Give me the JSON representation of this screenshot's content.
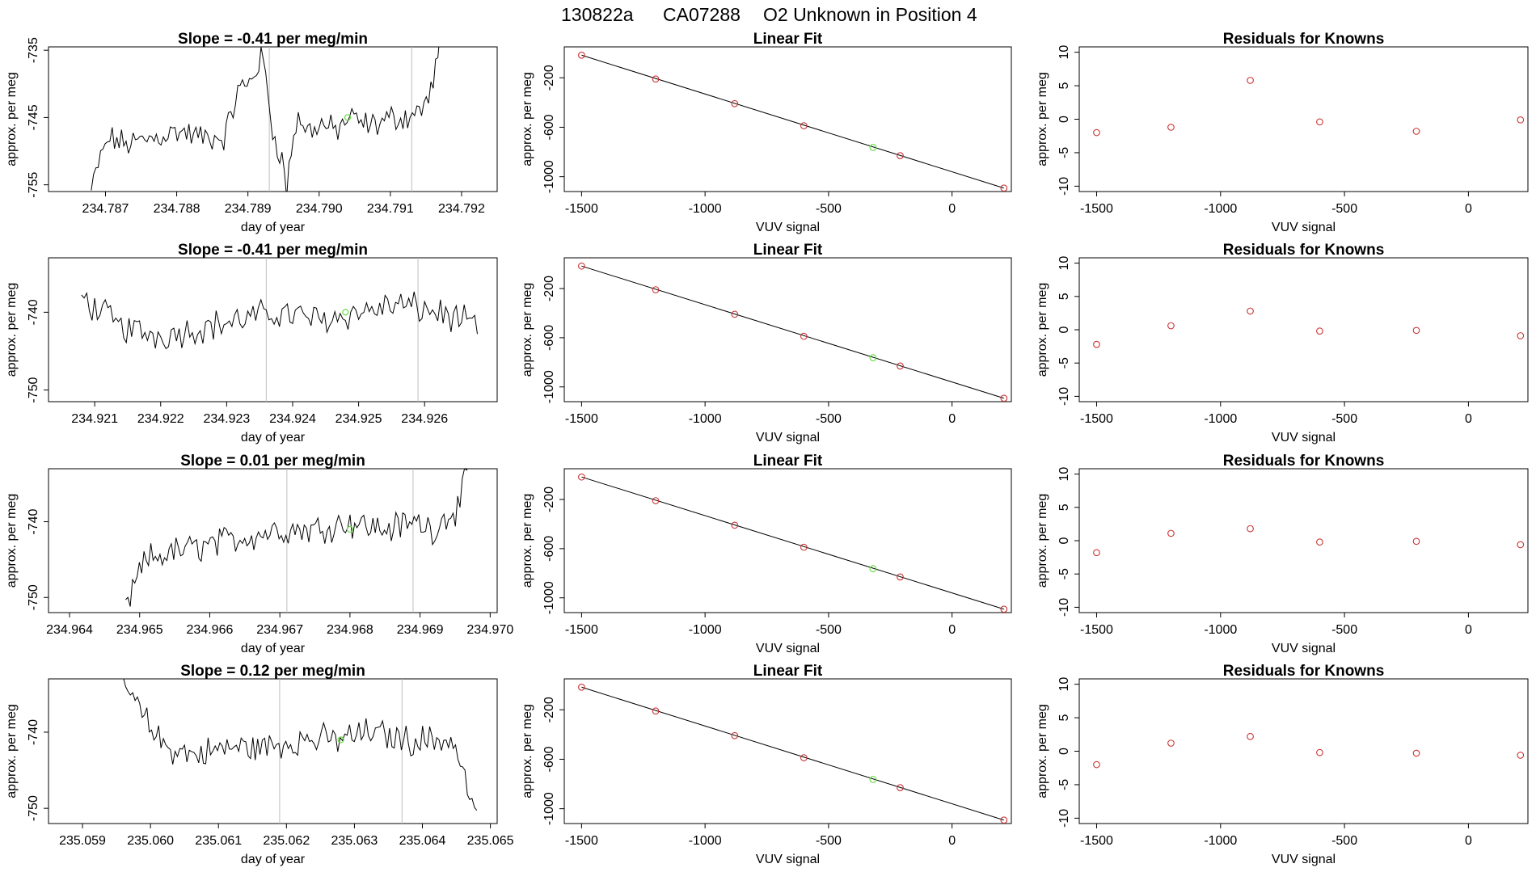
{
  "figure": {
    "title_id": "130822a",
    "title_cyl": "CA07288",
    "title_desc": "O2 Unknown in Position  4"
  },
  "colors": {
    "trace": "#000000",
    "vline": "#bdbdbd",
    "known_point": "#cd3333",
    "unknown_point": "#66dd44",
    "fit_line": "#000000"
  },
  "chart_data": [
    {
      "type": "line",
      "row": 1,
      "col": 1,
      "title": "Slope =  -0.41  per meg/min",
      "xlabel": "day of year",
      "ylabel": "approx. per meg",
      "xlim": [
        234.7862,
        234.7925
      ],
      "ylim": [
        -756,
        -734.5
      ],
      "xticks": [
        "234.787",
        "234.788",
        "234.789",
        "234.790",
        "234.791",
        "234.792"
      ],
      "yticks": [
        "-735",
        "-745",
        "-755"
      ],
      "vlines": [
        234.7893,
        234.7913
      ],
      "x_start": 234.7868,
      "x_end": 234.7917,
      "levels": [
        [
          0.0,
          -756
        ],
        [
          0.02,
          -752
        ],
        [
          0.05,
          -748
        ],
        [
          0.1,
          -749
        ],
        [
          0.18,
          -748
        ],
        [
          0.25,
          -747
        ],
        [
          0.32,
          -748
        ],
        [
          0.38,
          -748
        ],
        [
          0.4,
          -745
        ],
        [
          0.42,
          -741
        ],
        [
          0.45,
          -740
        ],
        [
          0.47,
          -738
        ],
        [
          0.49,
          -736
        ],
        [
          0.5,
          -739
        ],
        [
          0.52,
          -747
        ],
        [
          0.54,
          -750
        ],
        [
          0.55,
          -752
        ],
        [
          0.56,
          -756
        ],
        [
          0.57,
          -751
        ],
        [
          0.59,
          -745
        ],
        [
          0.62,
          -747
        ],
        [
          0.66,
          -746
        ],
        [
          0.7,
          -747
        ],
        [
          0.74,
          -745
        ],
        [
          0.78,
          -746
        ],
        [
          0.82,
          -746
        ],
        [
          0.86,
          -745
        ],
        [
          0.9,
          -745
        ],
        [
          0.94,
          -744
        ],
        [
          0.97,
          -742
        ],
        [
          1.0,
          -734
        ]
      ],
      "unknown_point": {
        "x": 234.7904,
        "y": -745
      }
    },
    {
      "type": "scatter",
      "row": 1,
      "col": 2,
      "title": "Linear Fit",
      "xlabel": "VUV signal",
      "ylabel": "approx. per meg",
      "xlim": [
        -1570,
        240
      ],
      "ylim": [
        -1120,
        50
      ],
      "xticks": [
        -1500,
        -1000,
        -500,
        0
      ],
      "yticks": [
        -200,
        -600,
        -1000
      ],
      "known_points": [
        [
          -1500,
          -17
        ],
        [
          -1200,
          -210
        ],
        [
          -880,
          -409
        ],
        [
          -600,
          -588
        ],
        [
          -210,
          -830
        ],
        [
          210,
          -1092
        ]
      ],
      "unknown_point": [
        -320,
        -763
      ],
      "fit_line": [
        [
          -1500,
          -17
        ],
        [
          210,
          -1092
        ]
      ]
    },
    {
      "type": "scatter",
      "row": 1,
      "col": 3,
      "title": "Residuals for Knowns",
      "xlabel": "VUV signal",
      "ylabel": "approx. per meg",
      "xlim": [
        -1570,
        240
      ],
      "ylim": [
        -10.8,
        10.8
      ],
      "xticks": [
        -1500,
        -1000,
        -500,
        0
      ],
      "yticks": [
        10,
        5,
        0,
        -5,
        -10
      ],
      "known_points": [
        [
          -1500,
          -2.0
        ],
        [
          -1200,
          -1.2
        ],
        [
          -880,
          5.8
        ],
        [
          -600,
          -0.4
        ],
        [
          -210,
          -1.8
        ],
        [
          210,
          -0.1
        ]
      ]
    },
    {
      "type": "line",
      "row": 2,
      "col": 1,
      "title": "Slope =  -0.41  per meg/min",
      "xlabel": "day of year",
      "ylabel": "approx. per meg",
      "xlim": [
        234.9203,
        234.9271
      ],
      "ylim": [
        -751.5,
        -733
      ],
      "xticks": [
        "234.921",
        "234.922",
        "234.923",
        "234.924",
        "234.925",
        "234.926"
      ],
      "yticks": [
        "-740",
        "-750"
      ],
      "vlines": [
        234.9236,
        234.9259
      ],
      "x_start": 234.9208,
      "x_end": 234.9268,
      "levels": [
        [
          0.0,
          -738
        ],
        [
          0.1,
          -742
        ],
        [
          0.2,
          -743
        ],
        [
          0.3,
          -742
        ],
        [
          0.4,
          -741
        ],
        [
          0.5,
          -740
        ],
        [
          0.6,
          -741
        ],
        [
          0.7,
          -740
        ],
        [
          0.8,
          -739
        ],
        [
          0.9,
          -740
        ],
        [
          1.0,
          -742
        ]
      ],
      "unknown_point": {
        "x": 234.9248,
        "y": -740
      }
    },
    {
      "type": "scatter",
      "row": 2,
      "col": 2,
      "title": "Linear Fit",
      "xlabel": "VUV signal",
      "ylabel": "approx. per meg",
      "xlim": [
        -1570,
        240
      ],
      "ylim": [
        -1120,
        50
      ],
      "xticks": [
        -1500,
        -1000,
        -500,
        0
      ],
      "yticks": [
        -200,
        -600,
        -1000
      ],
      "known_points": [
        [
          -1500,
          -17
        ],
        [
          -1200,
          -210
        ],
        [
          -880,
          -409
        ],
        [
          -600,
          -588
        ],
        [
          -210,
          -830
        ],
        [
          210,
          -1092
        ]
      ],
      "unknown_point": [
        -320,
        -763
      ],
      "fit_line": [
        [
          -1500,
          -17
        ],
        [
          210,
          -1092
        ]
      ]
    },
    {
      "type": "scatter",
      "row": 2,
      "col": 3,
      "title": "Residuals for Knowns",
      "xlabel": "VUV signal",
      "ylabel": "approx. per meg",
      "xlim": [
        -1570,
        240
      ],
      "ylim": [
        -10.8,
        10.8
      ],
      "xticks": [
        -1500,
        -1000,
        -500,
        0
      ],
      "yticks": [
        10,
        5,
        0,
        -5,
        -10
      ],
      "known_points": [
        [
          -1500,
          -2.2
        ],
        [
          -1200,
          0.6
        ],
        [
          -880,
          2.8
        ],
        [
          -600,
          -0.2
        ],
        [
          -210,
          -0.1
        ],
        [
          210,
          -0.9
        ]
      ]
    },
    {
      "type": "line",
      "row": 3,
      "col": 1,
      "title": "Slope =  0.01  per meg/min",
      "xlabel": "day of year",
      "ylabel": "approx. per meg",
      "xlim": [
        234.9637,
        234.9701
      ],
      "ylim": [
        -752,
        -733
      ],
      "xticks": [
        "234.964",
        "234.965",
        "234.966",
        "234.967",
        "234.968",
        "234.969",
        "234.970"
      ],
      "yticks": [
        "-740",
        "-750"
      ],
      "vlines": [
        234.9671,
        234.9689
      ],
      "x_start": 234.9648,
      "x_end": 234.9697,
      "levels": [
        [
          0.0,
          -752
        ],
        [
          0.02,
          -749
        ],
        [
          0.06,
          -745
        ],
        [
          0.14,
          -744
        ],
        [
          0.25,
          -743
        ],
        [
          0.35,
          -742
        ],
        [
          0.45,
          -741
        ],
        [
          0.55,
          -741
        ],
        [
          0.65,
          -740
        ],
        [
          0.75,
          -741
        ],
        [
          0.85,
          -740
        ],
        [
          0.9,
          -741
        ],
        [
          0.94,
          -739
        ],
        [
          0.97,
          -738
        ],
        [
          1.0,
          -733
        ]
      ],
      "unknown_point": {
        "x": 234.968,
        "y": -741
      }
    },
    {
      "type": "scatter",
      "row": 3,
      "col": 2,
      "title": "Linear Fit",
      "xlabel": "VUV signal",
      "ylabel": "approx. per meg",
      "xlim": [
        -1570,
        240
      ],
      "ylim": [
        -1120,
        50
      ],
      "xticks": [
        -1500,
        -1000,
        -500,
        0
      ],
      "yticks": [
        -200,
        -600,
        -1000
      ],
      "known_points": [
        [
          -1500,
          -17
        ],
        [
          -1200,
          -210
        ],
        [
          -880,
          -409
        ],
        [
          -600,
          -588
        ],
        [
          -210,
          -830
        ],
        [
          210,
          -1092
        ]
      ],
      "unknown_point": [
        -320,
        -763
      ],
      "fit_line": [
        [
          -1500,
          -17
        ],
        [
          210,
          -1092
        ]
      ]
    },
    {
      "type": "scatter",
      "row": 3,
      "col": 3,
      "title": "Residuals for Knowns",
      "xlabel": "VUV signal",
      "ylabel": "approx. per meg",
      "xlim": [
        -1570,
        240
      ],
      "ylim": [
        -10.8,
        10.8
      ],
      "xticks": [
        -1500,
        -1000,
        -500,
        0
      ],
      "yticks": [
        10,
        5,
        0,
        -5,
        -10
      ],
      "known_points": [
        [
          -1500,
          -1.8
        ],
        [
          -1200,
          1.1
        ],
        [
          -880,
          1.8
        ],
        [
          -600,
          -0.2
        ],
        [
          -210,
          -0.1
        ],
        [
          210,
          -0.6
        ]
      ]
    },
    {
      "type": "line",
      "row": 4,
      "col": 1,
      "title": "Slope =  0.12  per meg/min",
      "xlabel": "day of year",
      "ylabel": "approx. per meg",
      "xlim": [
        235.0585,
        235.0651
      ],
      "ylim": [
        -752,
        -733
      ],
      "xticks": [
        "235.059",
        "235.060",
        "235.061",
        "235.062",
        "235.063",
        "235.064",
        "235.065"
      ],
      "yticks": [
        "-740",
        "-750"
      ],
      "vlines": [
        235.0619,
        235.0637
      ],
      "x_start": 235.0596,
      "x_end": 235.0648,
      "levels": [
        [
          0.0,
          -733
        ],
        [
          0.03,
          -736
        ],
        [
          0.07,
          -739
        ],
        [
          0.12,
          -742
        ],
        [
          0.2,
          -743
        ],
        [
          0.3,
          -742
        ],
        [
          0.4,
          -742
        ],
        [
          0.5,
          -741
        ],
        [
          0.6,
          -741
        ],
        [
          0.7,
          -740
        ],
        [
          0.8,
          -741
        ],
        [
          0.88,
          -741
        ],
        [
          0.93,
          -741
        ],
        [
          0.96,
          -745
        ],
        [
          1.0,
          -752
        ]
      ],
      "unknown_point": {
        "x": 235.0628,
        "y": -741
      }
    },
    {
      "type": "scatter",
      "row": 4,
      "col": 2,
      "title": "Linear Fit",
      "xlabel": "VUV signal",
      "ylabel": "approx. per meg",
      "xlim": [
        -1570,
        240
      ],
      "ylim": [
        -1120,
        50
      ],
      "xticks": [
        -1500,
        -1000,
        -500,
        0
      ],
      "yticks": [
        -200,
        -600,
        -1000
      ],
      "known_points": [
        [
          -1500,
          -17
        ],
        [
          -1200,
          -210
        ],
        [
          -880,
          -409
        ],
        [
          -600,
          -588
        ],
        [
          -210,
          -830
        ],
        [
          210,
          -1092
        ]
      ],
      "unknown_point": [
        -320,
        -763
      ],
      "fit_line": [
        [
          -1500,
          -17
        ],
        [
          210,
          -1092
        ]
      ]
    },
    {
      "type": "scatter",
      "row": 4,
      "col": 3,
      "title": "Residuals for Knowns",
      "xlabel": "VUV signal",
      "ylabel": "approx. per meg",
      "xlim": [
        -1570,
        240
      ],
      "ylim": [
        -10.8,
        10.8
      ],
      "xticks": [
        -1500,
        -1000,
        -500,
        0
      ],
      "yticks": [
        10,
        5,
        0,
        -5,
        -10
      ],
      "known_points": [
        [
          -1500,
          -2.0
        ],
        [
          -1200,
          1.2
        ],
        [
          -880,
          2.2
        ],
        [
          -600,
          -0.2
        ],
        [
          -210,
          -0.3
        ],
        [
          210,
          -0.6
        ]
      ]
    }
  ]
}
